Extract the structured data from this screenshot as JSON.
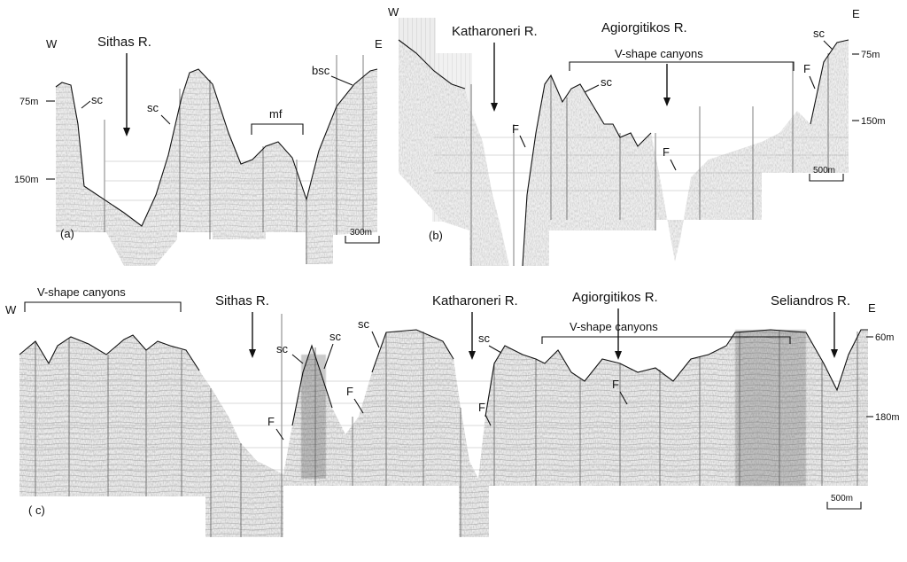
{
  "panels": {
    "a": {
      "label": "(a)",
      "west": "W",
      "east": "E",
      "river": "Sithas R.",
      "sc1": "sc",
      "sc2": "sc",
      "mf": "mf",
      "bsc": "bsc",
      "depth_75": "75m",
      "depth_150": "150m",
      "scale": "300m"
    },
    "b": {
      "label": "(b)",
      "west": "W",
      "east": "E",
      "river1": "Katharoneri R.",
      "river2": "Agiorgitikos R.",
      "canyons": "V-shape  canyons",
      "sc1": "sc",
      "sc2": "sc",
      "f1": "F",
      "f2": "F",
      "f3": "F",
      "depth_75": "75m",
      "depth_150": "150m",
      "scale": "500m"
    },
    "c": {
      "label": "( c)",
      "west": "W",
      "east": "E",
      "canyons_west": "V-shape canyons",
      "canyons_east": "V-shape canyons",
      "river1": "Sithas R.",
      "river2": "Katharoneri R.",
      "river3": "Agiorgitikos R.",
      "river4": "Seliandros R.",
      "sc1": "sc",
      "sc2": "sc",
      "sc3": "sc",
      "sc4": "sc",
      "f1": "F",
      "f2": "F",
      "f3": "F",
      "f4": "F",
      "depth_60": "60m",
      "depth_180": "180m",
      "scale": "500m"
    }
  },
  "colors": {
    "record_background": "#f4f4f4",
    "reflector": "#1a1a1a",
    "text": "#111111"
  }
}
